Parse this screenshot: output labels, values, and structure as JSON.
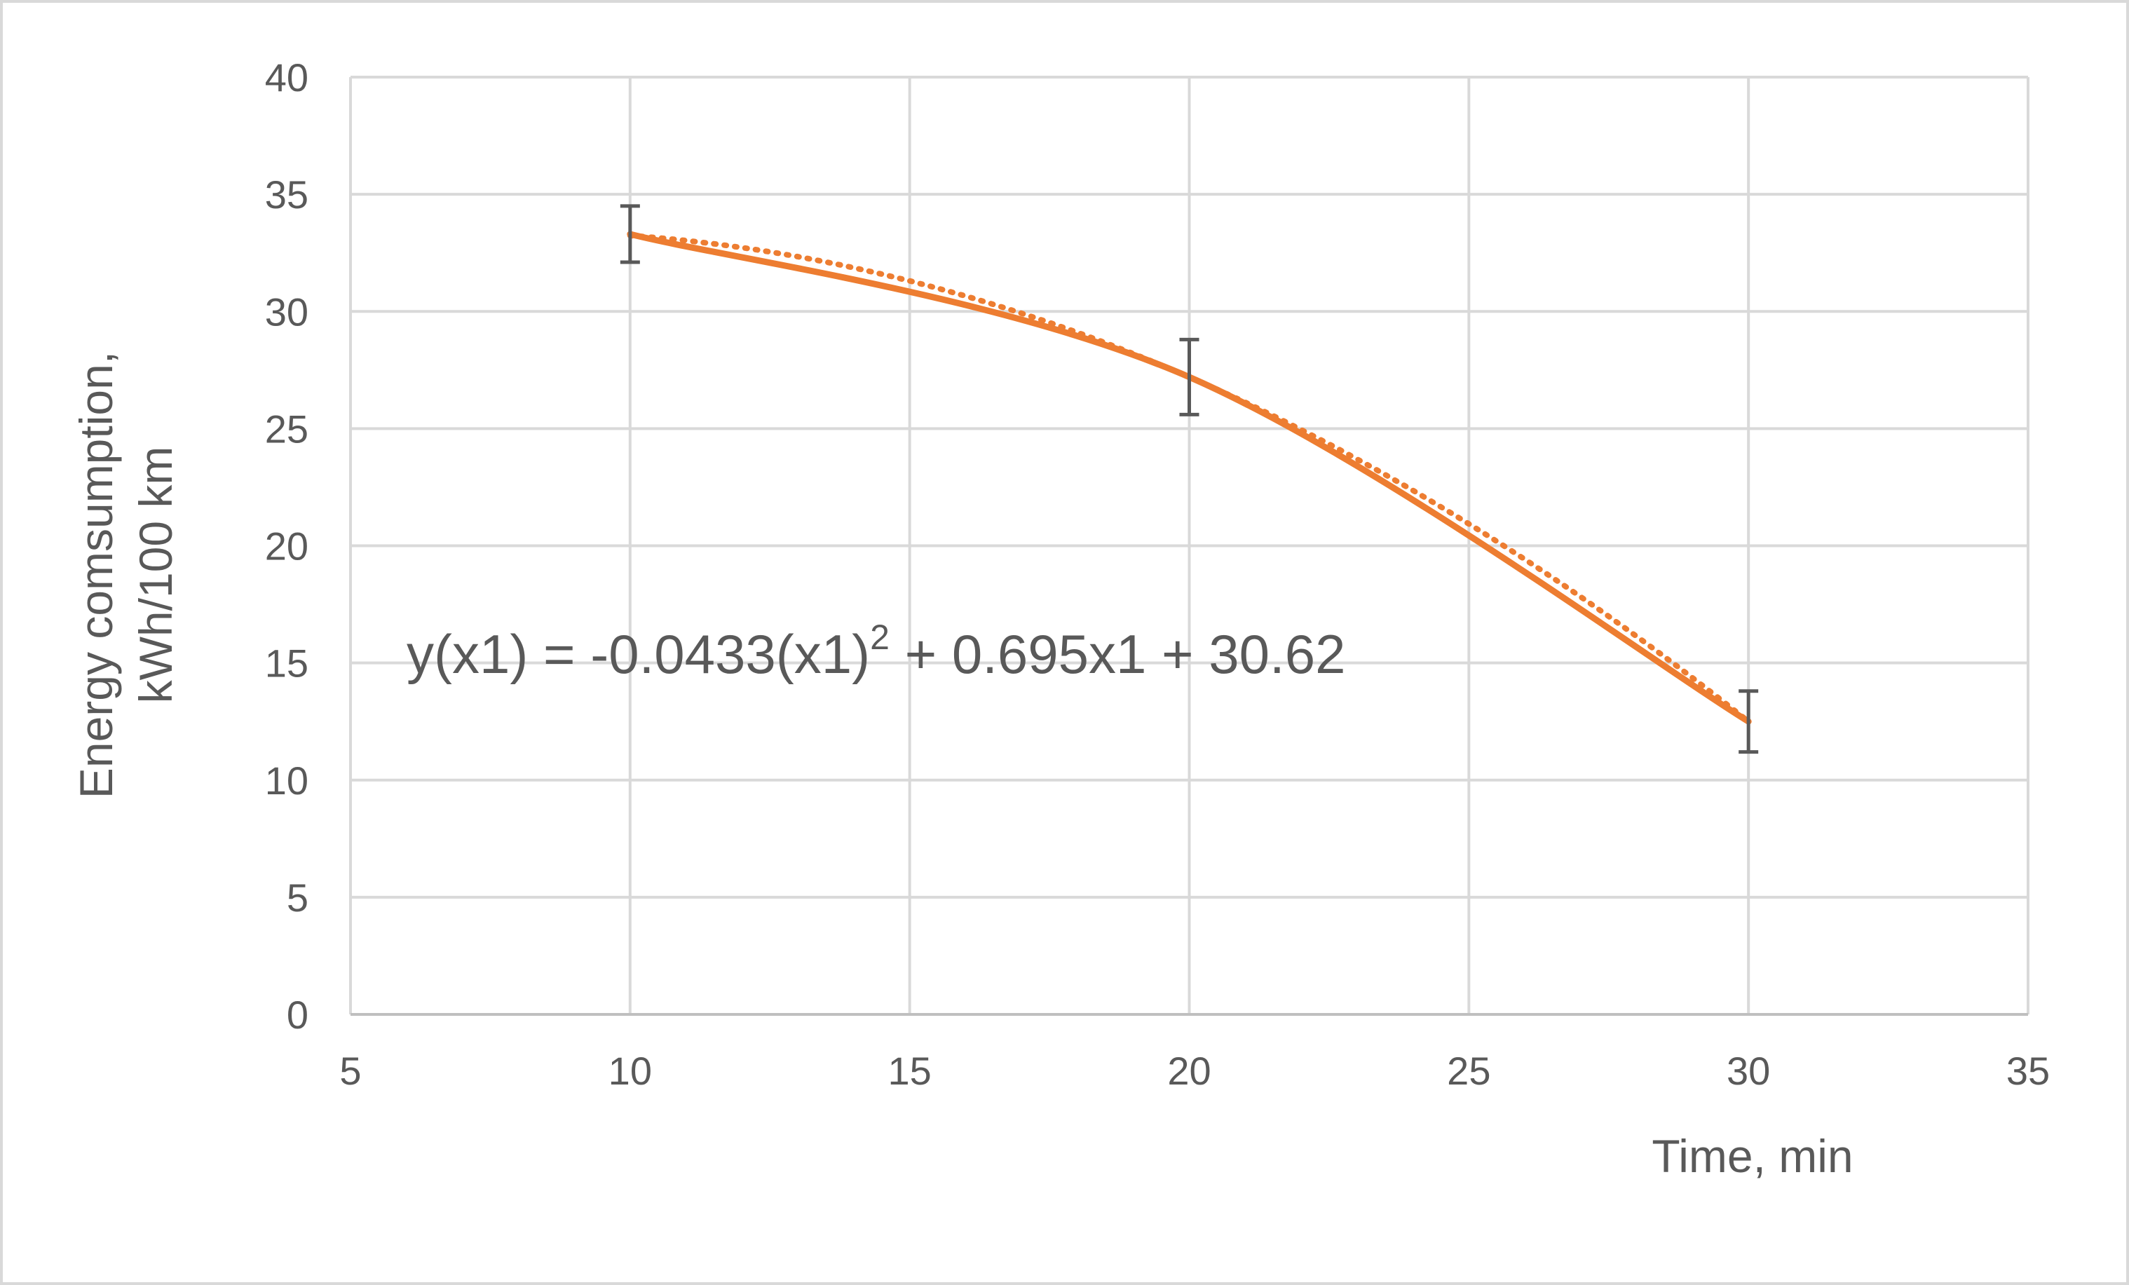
{
  "chart_data": {
    "type": "line",
    "title": "",
    "xlabel": "Time, min",
    "ylabel_lines": [
      "Energy comsumption,",
      "kWh/100 km"
    ],
    "xlim": [
      5,
      35
    ],
    "ylim": [
      0,
      40
    ],
    "x_ticks": [
      5,
      10,
      15,
      20,
      25,
      30,
      35
    ],
    "y_ticks": [
      0,
      5,
      10,
      15,
      20,
      25,
      30,
      35,
      40
    ],
    "grid": true,
    "legend": "none",
    "line_color": "#ed7d31",
    "error_bar_color": "#595959",
    "series": [
      {
        "type": "line-smooth",
        "x": [
          10,
          20,
          30
        ],
        "y": [
          33.3,
          27.2,
          12.5
        ],
        "error": [
          1.2,
          1.6,
          1.3
        ]
      },
      {
        "type": "polynomial-trendline",
        "coefficients": {
          "a": -0.0433,
          "b": 0.695,
          "c": 30.62
        },
        "x_range": [
          10,
          30
        ]
      }
    ],
    "annotations": [
      {
        "text_before": "y(x1) = -0.0433(x1)",
        "superscript": "2",
        "text_after": " + 0.695x1 + 30.62"
      }
    ]
  }
}
